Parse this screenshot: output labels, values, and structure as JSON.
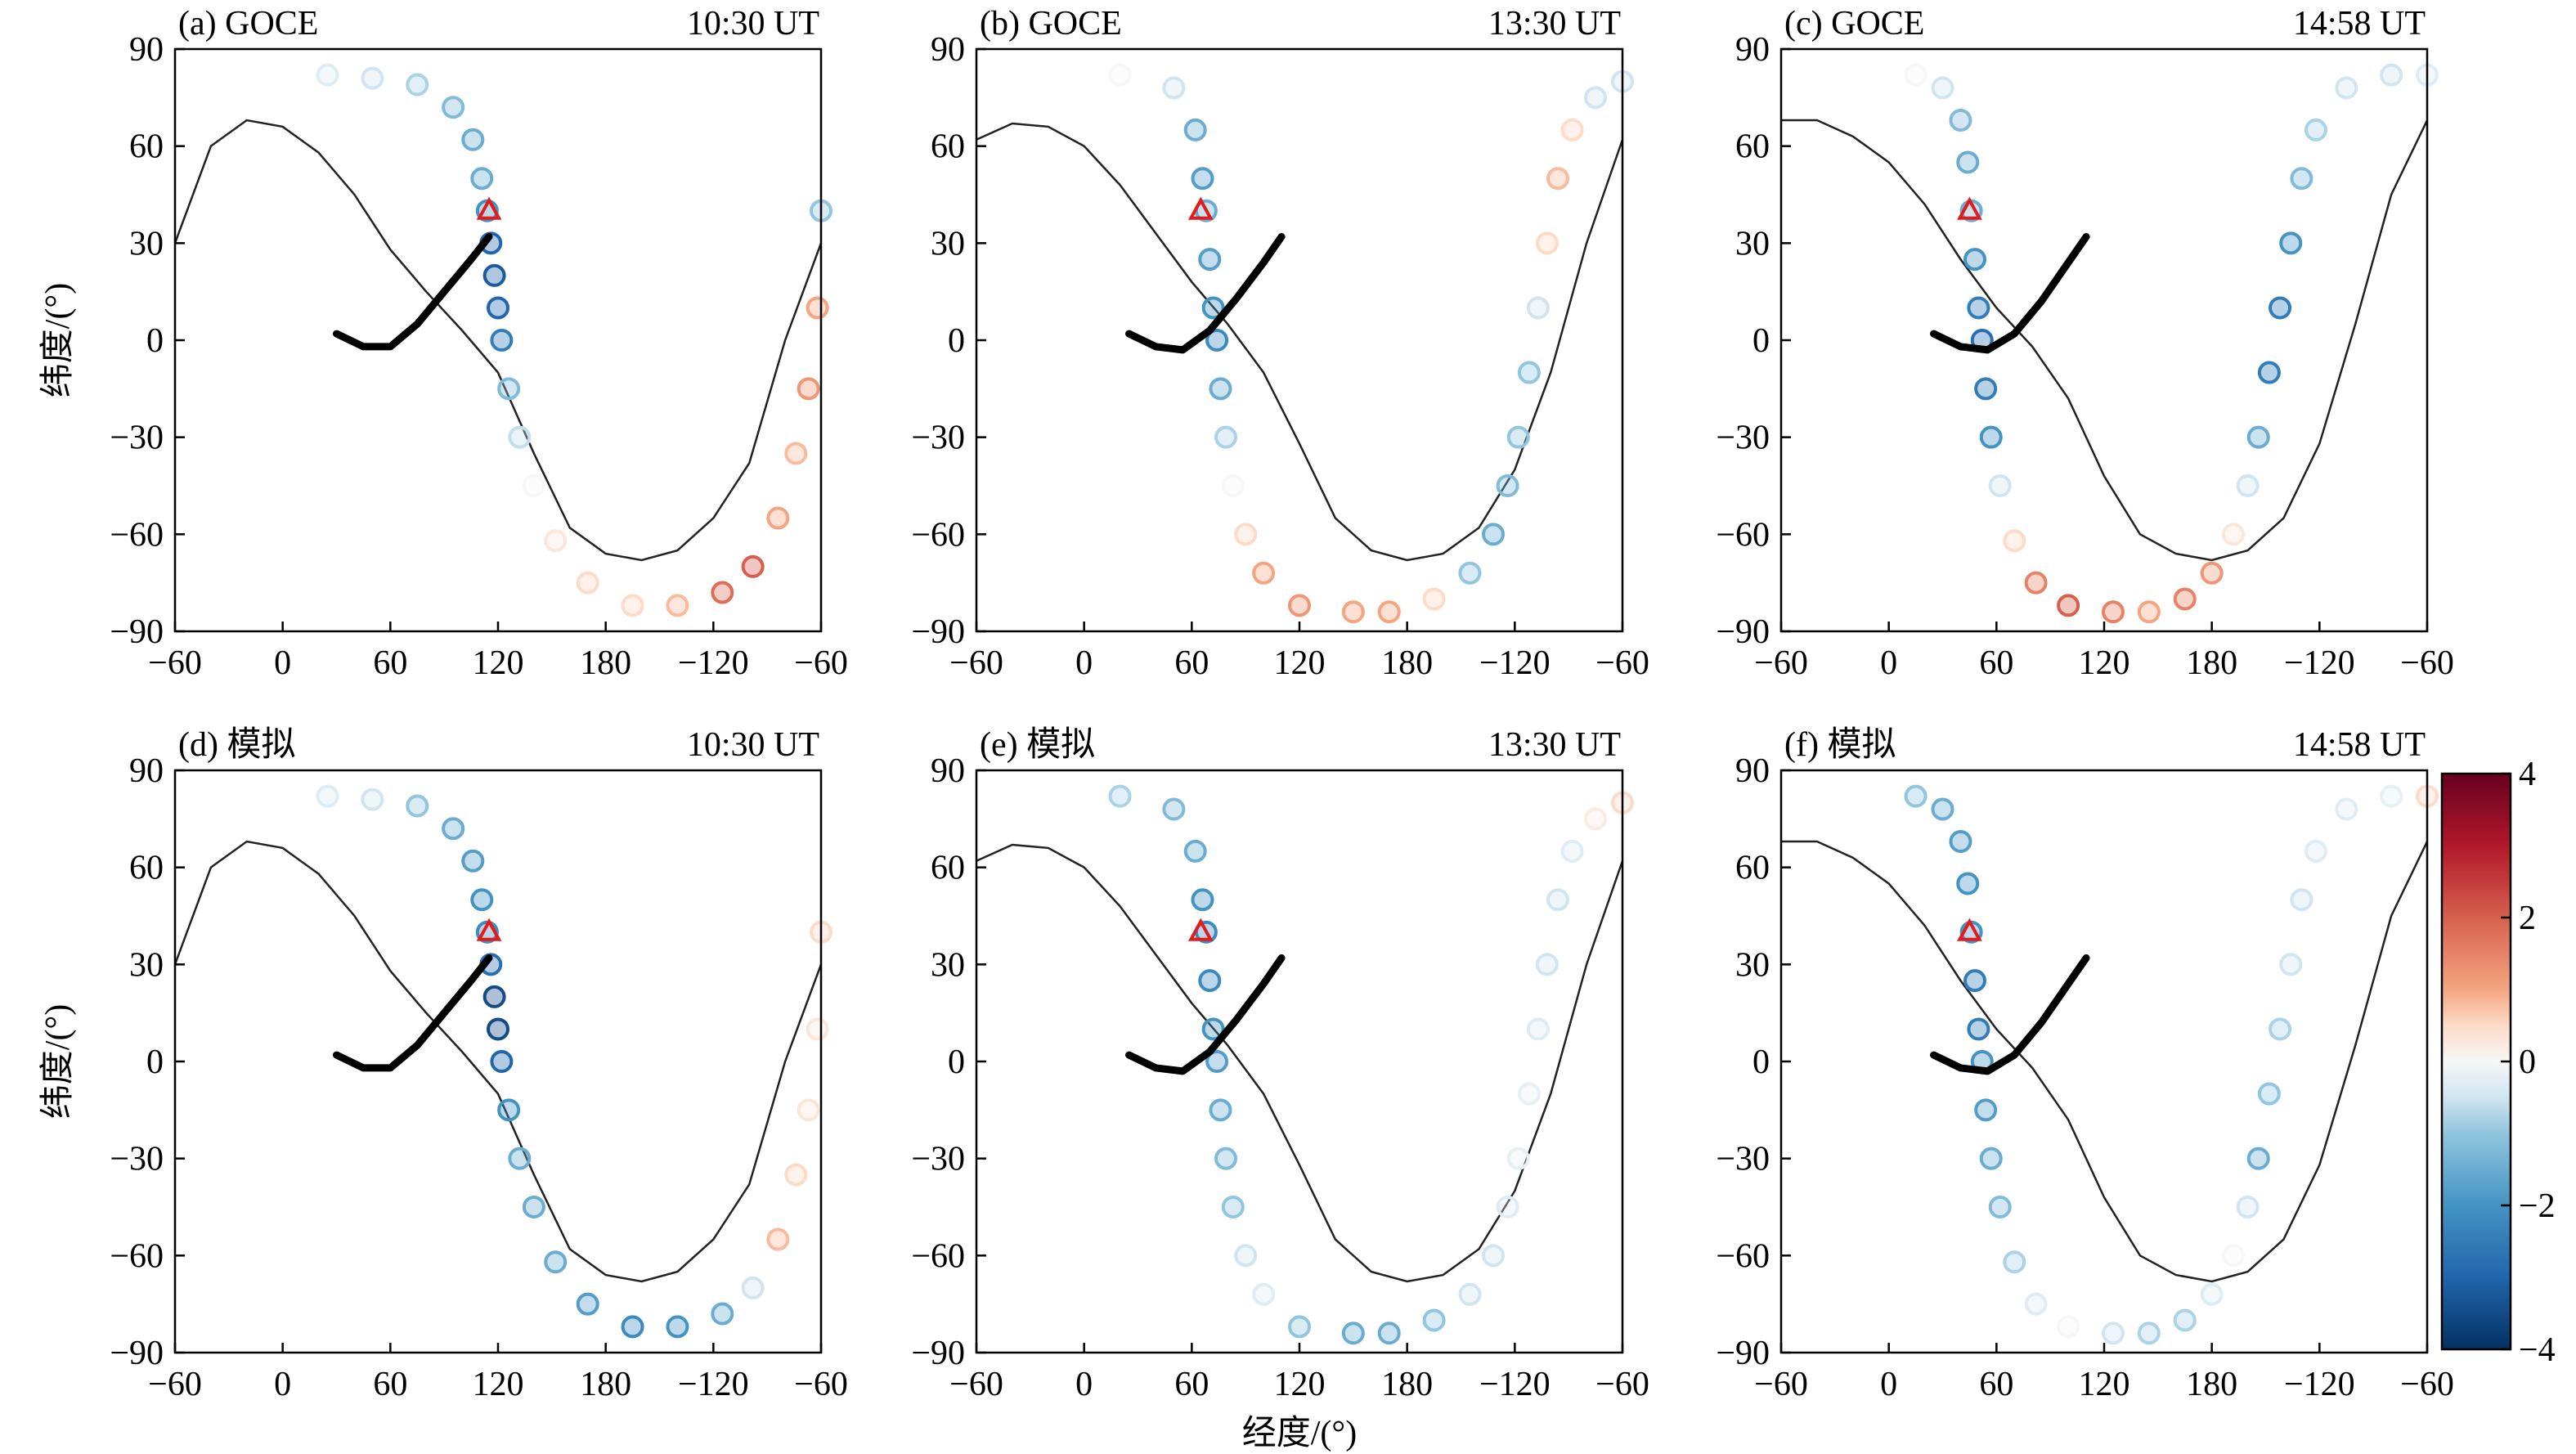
{
  "colorbar": {
    "lim": [
      -4,
      4
    ],
    "ticks": [
      4,
      2,
      0,
      {
        "value": -2,
        "label": "−2"
      },
      {
        "value": -4,
        "label": "−4"
      }
    ],
    "colormap": "RdBu_r"
  },
  "chart_data": [
    {
      "type": "scatter",
      "title": "(a) GOCE",
      "time": "10:30 UT",
      "ylabel": "纬度/(°)",
      "xlim": [
        -60,
        300
      ],
      "ylim": [
        -90,
        90
      ],
      "xticks": [
        {
          "value": -60,
          "label": "−60"
        },
        0,
        60,
        120,
        180,
        {
          "value": 240,
          "label": "−120"
        },
        {
          "value": 300,
          "label": "−60"
        }
      ],
      "yticks": [
        90,
        60,
        30,
        0,
        {
          "value": -30,
          "label": "−30"
        },
        {
          "value": -60,
          "label": "−60"
        },
        {
          "value": -90,
          "label": "−90"
        }
      ],
      "x": [
        25,
        50,
        75,
        95,
        106,
        111,
        114,
        116,
        118,
        120,
        122,
        126,
        132,
        140,
        152,
        170,
        195,
        220,
        245,
        262,
        276,
        286,
        293,
        298,
        300
      ],
      "y": [
        82,
        81,
        79,
        72,
        62,
        50,
        40,
        30,
        20,
        10,
        0,
        -15,
        -30,
        -45,
        -62,
        -75,
        -82,
        -82,
        -78,
        -70,
        -55,
        -35,
        -15,
        10,
        40
      ],
      "values": [
        -0.3,
        -0.5,
        -0.8,
        -1.2,
        -1.5,
        -1.5,
        -2,
        -3,
        -3.2,
        -3,
        -2.5,
        -1.2,
        -0.6,
        0,
        0.3,
        0.5,
        0.5,
        0.8,
        1.8,
        2,
        1,
        0.8,
        1.2,
        1,
        -1
      ],
      "terminator": {
        "x": [
          -60,
          -40,
          -20,
          0,
          20,
          40,
          60,
          80,
          100,
          120,
          140,
          160,
          180,
          200,
          220,
          240,
          260,
          280,
          300
        ],
        "y": [
          30,
          60,
          68,
          66,
          58,
          45,
          28,
          15,
          3,
          -10,
          -35,
          -58,
          -66,
          -68,
          -65,
          -55,
          -38,
          0,
          30
        ]
      },
      "equator": {
        "x": [
          30,
          45,
          60,
          75,
          90,
          105,
          115
        ],
        "y": [
          2,
          -2,
          -2,
          5,
          15,
          25,
          32
        ]
      },
      "marker": {
        "x": 115,
        "y": 40,
        "color": "#e41a1c"
      }
    },
    {
      "type": "scatter",
      "title": "(b) GOCE",
      "time": "13:30 UT",
      "xlim": [
        -60,
        300
      ],
      "ylim": [
        -90,
        90
      ],
      "xticks": [
        {
          "value": -60,
          "label": "−60"
        },
        0,
        60,
        120,
        180,
        {
          "value": 240,
          "label": "−120"
        },
        {
          "value": 300,
          "label": "−60"
        }
      ],
      "yticks": [
        90,
        60,
        30,
        0,
        {
          "value": -30,
          "label": "−30"
        },
        {
          "value": -60,
          "label": "−60"
        },
        {
          "value": -90,
          "label": "−90"
        }
      ],
      "x": [
        20,
        50,
        62,
        66,
        68,
        70,
        72,
        74,
        76,
        79,
        83,
        90,
        100,
        120,
        150,
        170,
        195,
        215,
        228,
        236,
        242,
        248,
        253,
        258,
        264,
        272,
        285,
        300
      ],
      "y": [
        82,
        78,
        65,
        50,
        40,
        25,
        10,
        0,
        -15,
        -30,
        -45,
        -60,
        -72,
        -82,
        -84,
        -84,
        -80,
        -72,
        -60,
        -45,
        -30,
        -10,
        10,
        30,
        50,
        65,
        75,
        80
      ],
      "values": [
        0,
        -0.5,
        -1.5,
        -1.8,
        -1.5,
        -1.8,
        -2,
        -2.2,
        -1.5,
        -0.8,
        0,
        0.5,
        1,
        1.2,
        1,
        1,
        0.5,
        -1,
        -1.5,
        -1.2,
        -1,
        -1,
        -0.5,
        0.5,
        0.8,
        0.5,
        -0.5,
        -0.5
      ],
      "terminator": {
        "x": [
          -60,
          -40,
          -20,
          0,
          20,
          40,
          60,
          80,
          100,
          120,
          140,
          160,
          180,
          200,
          220,
          240,
          260,
          280,
          300
        ],
        "y": [
          62,
          67,
          66,
          60,
          48,
          33,
          18,
          5,
          -10,
          -32,
          -55,
          -65,
          -68,
          -66,
          -58,
          -40,
          -10,
          30,
          62
        ]
      },
      "equator": {
        "x": [
          25,
          40,
          55,
          70,
          85,
          100,
          110
        ],
        "y": [
          2,
          -2,
          -3,
          3,
          13,
          24,
          32
        ]
      },
      "marker": {
        "x": 65,
        "y": 40,
        "color": "#e41a1c"
      }
    },
    {
      "type": "scatter",
      "title": "(c) GOCE",
      "time": "14:58 UT",
      "xlim": [
        -60,
        300
      ],
      "ylim": [
        -90,
        90
      ],
      "xticks": [
        {
          "value": -60,
          "label": "−60"
        },
        0,
        60,
        120,
        180,
        {
          "value": 240,
          "label": "−120"
        },
        {
          "value": 300,
          "label": "−60"
        }
      ],
      "yticks": [
        90,
        60,
        30,
        0,
        {
          "value": -30,
          "label": "−30"
        },
        {
          "value": -60,
          "label": "−60"
        },
        {
          "value": -90,
          "label": "−90"
        }
      ],
      "x": [
        15,
        30,
        40,
        44,
        46,
        48,
        50,
        52,
        54,
        57,
        62,
        70,
        82,
        100,
        125,
        145,
        165,
        180,
        192,
        200,
        206,
        212,
        218,
        224,
        230,
        238,
        255,
        280,
        300
      ],
      "y": [
        82,
        78,
        68,
        55,
        40,
        25,
        10,
        0,
        -15,
        -30,
        -45,
        -62,
        -75,
        -82,
        -84,
        -84,
        -80,
        -72,
        -60,
        -45,
        -30,
        -10,
        10,
        30,
        50,
        65,
        78,
        82,
        82
      ],
      "values": [
        0,
        -0.5,
        -1.2,
        -1.5,
        -1.5,
        -2,
        -2.5,
        -2.8,
        -2.5,
        -2,
        -0.5,
        0.5,
        1.5,
        2,
        1.5,
        1,
        1.5,
        1.2,
        0.3,
        -0.5,
        -1.5,
        -2.5,
        -2.5,
        -2,
        -1.2,
        -0.8,
        -0.5,
        -0.5,
        -0.3
      ],
      "terminator": {
        "x": [
          -60,
          -40,
          -20,
          0,
          20,
          40,
          60,
          80,
          100,
          120,
          140,
          160,
          180,
          200,
          220,
          240,
          260,
          280,
          300
        ],
        "y": [
          68,
          68,
          63,
          55,
          42,
          25,
          10,
          -2,
          -18,
          -42,
          -60,
          -66,
          -68,
          -65,
          -55,
          -32,
          5,
          45,
          68
        ]
      },
      "equator": {
        "x": [
          25,
          40,
          55,
          70,
          85,
          100,
          110
        ],
        "y": [
          2,
          -2,
          -3,
          2,
          12,
          24,
          32
        ]
      },
      "marker": {
        "x": 45,
        "y": 40,
        "color": "#e41a1c"
      }
    },
    {
      "type": "scatter",
      "title": "(d) 模拟",
      "time": "10:30 UT",
      "ylabel": "纬度/(°)",
      "xlim": [
        -60,
        300
      ],
      "ylim": [
        -90,
        90
      ],
      "xticks": [
        {
          "value": -60,
          "label": "−60"
        },
        0,
        60,
        120,
        180,
        {
          "value": 240,
          "label": "−120"
        },
        {
          "value": 300,
          "label": "−60"
        }
      ],
      "yticks": [
        90,
        60,
        30,
        0,
        {
          "value": -30,
          "label": "−30"
        },
        {
          "value": -60,
          "label": "−60"
        },
        {
          "value": -90,
          "label": "−90"
        }
      ],
      "x": [
        25,
        50,
        75,
        95,
        106,
        111,
        114,
        116,
        118,
        120,
        122,
        126,
        132,
        140,
        152,
        170,
        195,
        220,
        245,
        262,
        276,
        286,
        293,
        298,
        300
      ],
      "y": [
        82,
        81,
        79,
        72,
        62,
        50,
        40,
        30,
        20,
        10,
        0,
        -15,
        -30,
        -45,
        -62,
        -75,
        -82,
        -82,
        -78,
        -70,
        -55,
        -35,
        -15,
        10,
        40
      ],
      "values": [
        -0.3,
        -0.5,
        -1,
        -1.5,
        -1.8,
        -2,
        -2.2,
        -2.8,
        -3.5,
        -3.5,
        -3,
        -2,
        -1.5,
        -1.5,
        -1.5,
        -1.8,
        -2.2,
        -2,
        -1.5,
        -0.5,
        0.8,
        0.5,
        0.3,
        0.3,
        0.5
      ],
      "terminator": {
        "x": [
          -60,
          -40,
          -20,
          0,
          20,
          40,
          60,
          80,
          100,
          120,
          140,
          160,
          180,
          200,
          220,
          240,
          260,
          280,
          300
        ],
        "y": [
          30,
          60,
          68,
          66,
          58,
          45,
          28,
          15,
          3,
          -10,
          -35,
          -58,
          -66,
          -68,
          -65,
          -55,
          -38,
          0,
          30
        ]
      },
      "equator": {
        "x": [
          30,
          45,
          60,
          75,
          90,
          105,
          115
        ],
        "y": [
          2,
          -2,
          -2,
          5,
          15,
          25,
          32
        ]
      },
      "marker": {
        "x": 115,
        "y": 40,
        "color": "#e41a1c"
      }
    },
    {
      "type": "scatter",
      "title": "(e) 模拟",
      "time": "13:30 UT",
      "xlabel": "经度/(°)",
      "xlim": [
        -60,
        300
      ],
      "ylim": [
        -90,
        90
      ],
      "xticks": [
        {
          "value": -60,
          "label": "−60"
        },
        0,
        60,
        120,
        180,
        {
          "value": 240,
          "label": "−120"
        },
        {
          "value": 300,
          "label": "−60"
        }
      ],
      "yticks": [
        90,
        60,
        30,
        0,
        {
          "value": -30,
          "label": "−30"
        },
        {
          "value": -60,
          "label": "−60"
        },
        {
          "value": -90,
          "label": "−90"
        }
      ],
      "x": [
        20,
        50,
        62,
        66,
        68,
        70,
        72,
        74,
        76,
        79,
        83,
        90,
        100,
        120,
        150,
        170,
        195,
        215,
        228,
        236,
        242,
        248,
        253,
        258,
        264,
        272,
        285,
        300
      ],
      "y": [
        82,
        78,
        65,
        50,
        40,
        25,
        10,
        0,
        -15,
        -30,
        -45,
        -60,
        -72,
        -82,
        -84,
        -84,
        -80,
        -72,
        -60,
        -45,
        -30,
        -10,
        10,
        30,
        50,
        65,
        75,
        80
      ],
      "values": [
        -0.8,
        -1.2,
        -1.5,
        -2,
        -2.2,
        -2.2,
        -2,
        -1.8,
        -1.5,
        -1.2,
        -1,
        -0.5,
        -0.3,
        -1,
        -1.5,
        -1.5,
        -1,
        -0.5,
        -0.5,
        -0.3,
        -0.2,
        -0.2,
        -0.3,
        -0.5,
        -0.5,
        -0.3,
        0.2,
        0.5
      ],
      "terminator": {
        "x": [
          -60,
          -40,
          -20,
          0,
          20,
          40,
          60,
          80,
          100,
          120,
          140,
          160,
          180,
          200,
          220,
          240,
          260,
          280,
          300
        ],
        "y": [
          62,
          67,
          66,
          60,
          48,
          33,
          18,
          5,
          -10,
          -32,
          -55,
          -65,
          -68,
          -66,
          -58,
          -40,
          -10,
          30,
          62
        ]
      },
      "equator": {
        "x": [
          25,
          40,
          55,
          70,
          85,
          100,
          110
        ],
        "y": [
          2,
          -2,
          -3,
          3,
          13,
          24,
          32
        ]
      },
      "marker": {
        "x": 65,
        "y": 40,
        "color": "#e41a1c"
      }
    },
    {
      "type": "scatter",
      "title": "(f) 模拟",
      "time": "14:58 UT",
      "xlim": [
        -60,
        300
      ],
      "ylim": [
        -90,
        90
      ],
      "xticks": [
        {
          "value": -60,
          "label": "−60"
        },
        0,
        60,
        120,
        180,
        {
          "value": 240,
          "label": "−120"
        },
        {
          "value": 300,
          "label": "−60"
        }
      ],
      "yticks": [
        90,
        60,
        30,
        0,
        {
          "value": -30,
          "label": "−30"
        },
        {
          "value": -60,
          "label": "−60"
        },
        {
          "value": -90,
          "label": "−90"
        }
      ],
      "x": [
        15,
        30,
        40,
        44,
        46,
        48,
        50,
        52,
        54,
        57,
        62,
        70,
        82,
        100,
        125,
        145,
        165,
        180,
        192,
        200,
        206,
        212,
        218,
        224,
        230,
        238,
        255,
        280,
        300
      ],
      "y": [
        82,
        78,
        68,
        55,
        40,
        25,
        10,
        0,
        -15,
        -30,
        -45,
        -62,
        -75,
        -82,
        -84,
        -84,
        -80,
        -72,
        -60,
        -45,
        -30,
        -10,
        10,
        30,
        50,
        65,
        78,
        82,
        82
      ],
      "values": [
        -1,
        -1.5,
        -1.8,
        -2,
        -2,
        -2.5,
        -2.5,
        -2,
        -1.8,
        -1.5,
        -1.2,
        -0.8,
        -0.3,
        0,
        -0.5,
        -0.8,
        -0.8,
        -0.3,
        0,
        -0.5,
        -1.5,
        -1,
        -0.8,
        -0.5,
        -0.5,
        -0.3,
        -0.3,
        -0.2,
        0.5
      ],
      "terminator": {
        "x": [
          -60,
          -40,
          -20,
          0,
          20,
          40,
          60,
          80,
          100,
          120,
          140,
          160,
          180,
          200,
          220,
          240,
          260,
          280,
          300
        ],
        "y": [
          68,
          68,
          63,
          55,
          42,
          25,
          10,
          -2,
          -18,
          -42,
          -60,
          -66,
          -68,
          -65,
          -55,
          -32,
          5,
          45,
          68
        ]
      },
      "equator": {
        "x": [
          25,
          40,
          55,
          70,
          85,
          100,
          110
        ],
        "y": [
          2,
          -2,
          -3,
          2,
          12,
          24,
          32
        ]
      },
      "marker": {
        "x": 45,
        "y": 40,
        "color": "#e41a1c"
      }
    }
  ]
}
